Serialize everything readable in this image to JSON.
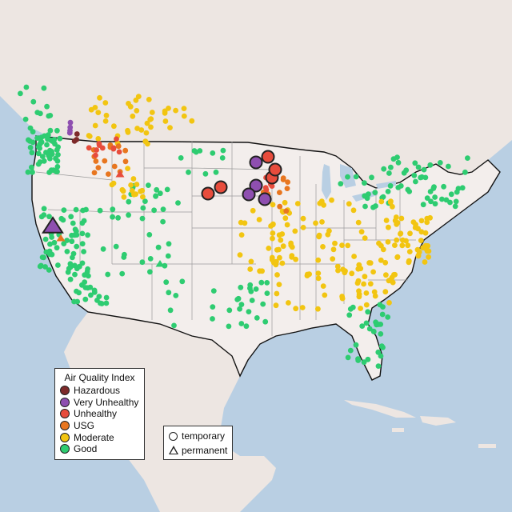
{
  "legend": {
    "title": "Air Quality Index",
    "categories": [
      {
        "key": "hazardous",
        "label": "Hazardous",
        "color": "#7d2a2a"
      },
      {
        "key": "very_unhealthy",
        "label": "Very Unhealthy",
        "color": "#8e4fb0"
      },
      {
        "key": "unhealthy",
        "label": "Unhealthy",
        "color": "#e74c3c"
      },
      {
        "key": "usg",
        "label": "USG",
        "color": "#e8761f"
      },
      {
        "key": "moderate",
        "label": "Moderate",
        "color": "#f2c511"
      },
      {
        "key": "good",
        "label": "Good",
        "color": "#2ecc71"
      }
    ]
  },
  "site_legend": {
    "temporary": "temporary",
    "permanent": "permanent"
  },
  "colors": {
    "land": "#ede6e2",
    "us_land": "#f3eeec",
    "water": "#b9cfe3",
    "border": "#111111",
    "state_line": "#9a9a9a",
    "inactive": "#c0c0c0"
  }
}
